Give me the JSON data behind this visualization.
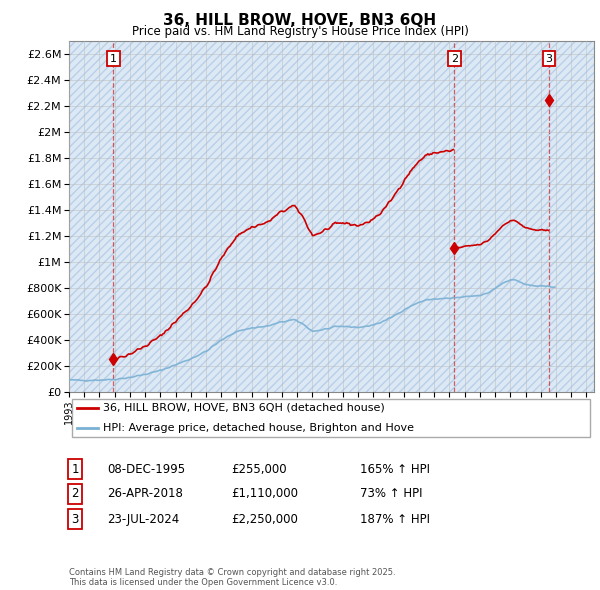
{
  "title": "36, HILL BROW, HOVE, BN3 6QH",
  "subtitle": "Price paid vs. HM Land Registry's House Price Index (HPI)",
  "legend_property": "36, HILL BROW, HOVE, BN3 6QH (detached house)",
  "legend_hpi": "HPI: Average price, detached house, Brighton and Hove",
  "sale_points": [
    {
      "label": "1",
      "date": "08-DEC-1995",
      "price": 255000,
      "year": 1995.92
    },
    {
      "label": "2",
      "date": "26-APR-2018",
      "price": 1110000,
      "year": 2018.32
    },
    {
      "label": "3",
      "date": "23-JUL-2024",
      "price": 2250000,
      "year": 2024.55
    }
  ],
  "table_rows": [
    {
      "num": "1",
      "date": "08-DEC-1995",
      "price": "£255,000",
      "hpi": "165% ↑ HPI"
    },
    {
      "num": "2",
      "date": "26-APR-2018",
      "price": "£1,110,000",
      "hpi": "73% ↑ HPI"
    },
    {
      "num": "3",
      "date": "23-JUL-2024",
      "price": "£2,250,000",
      "hpi": "187% ↑ HPI"
    }
  ],
  "footnote": "Contains HM Land Registry data © Crown copyright and database right 2025.\nThis data is licensed under the Open Government Licence v3.0.",
  "ylim": [
    0,
    2700000
  ],
  "yticks": [
    0,
    200000,
    400000,
    600000,
    800000,
    1000000,
    1200000,
    1400000,
    1600000,
    1800000,
    2000000,
    2200000,
    2400000,
    2600000
  ],
  "xlim_start": 1993.0,
  "xlim_end": 2027.5,
  "red_color": "#cc0000",
  "blue_color": "#7ab0d4",
  "hatch_color": "#c5d8ee",
  "grid_color": "#bbbbbb"
}
